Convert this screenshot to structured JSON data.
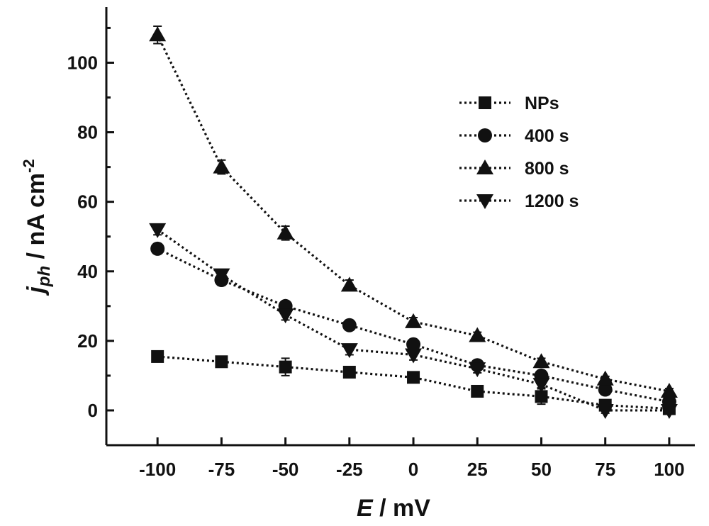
{
  "chart_data": {
    "type": "line",
    "xlabel": {
      "italic": "E",
      "rest": " / mV"
    },
    "ylabel": {
      "italic": "j",
      "sub": "ph",
      "rest": " / nA cm",
      "sup": "-2"
    },
    "xlim": [
      -120,
      110
    ],
    "ylim": [
      -10,
      116
    ],
    "x": [
      -100,
      -75,
      -50,
      -25,
      0,
      25,
      50,
      75,
      100
    ],
    "xticks": [
      "-100",
      "-75",
      "-50",
      "-25",
      "0",
      "25",
      "50",
      "75",
      "100"
    ],
    "yticks": [
      0,
      20,
      40,
      60,
      80,
      100
    ],
    "legend_position": "top-right",
    "series": [
      {
        "name": "NPs",
        "marker": "square",
        "values": [
          15.5,
          14,
          12.5,
          11,
          9.5,
          5.5,
          4,
          1.5,
          0.5
        ],
        "errors": [
          0.8,
          0.8,
          2.5,
          1.2,
          0.8,
          0.8,
          2.2,
          0.8,
          0.5
        ]
      },
      {
        "name": "400 s",
        "marker": "circle",
        "values": [
          46.5,
          37.5,
          30,
          24.5,
          19,
          13,
          10,
          6,
          2.5
        ],
        "errors": [
          1.2,
          1.5,
          1.2,
          1,
          1,
          1,
          1,
          0.8,
          0.5
        ]
      },
      {
        "name": "800 s",
        "marker": "triangle-up",
        "values": [
          108,
          70,
          51,
          36,
          25.5,
          21.5,
          14,
          9,
          5.5
        ],
        "errors": [
          2.5,
          2,
          2,
          1.5,
          1.2,
          1,
          1,
          0.8,
          0.8
        ]
      },
      {
        "name": "1200 s",
        "marker": "triangle-down",
        "values": [
          52,
          39,
          27.5,
          17.5,
          16,
          12,
          7.5,
          0,
          0
        ],
        "errors": [
          1.5,
          1.5,
          1.5,
          1.5,
          1.5,
          1.2,
          1,
          0.8,
          0.5
        ]
      }
    ]
  }
}
